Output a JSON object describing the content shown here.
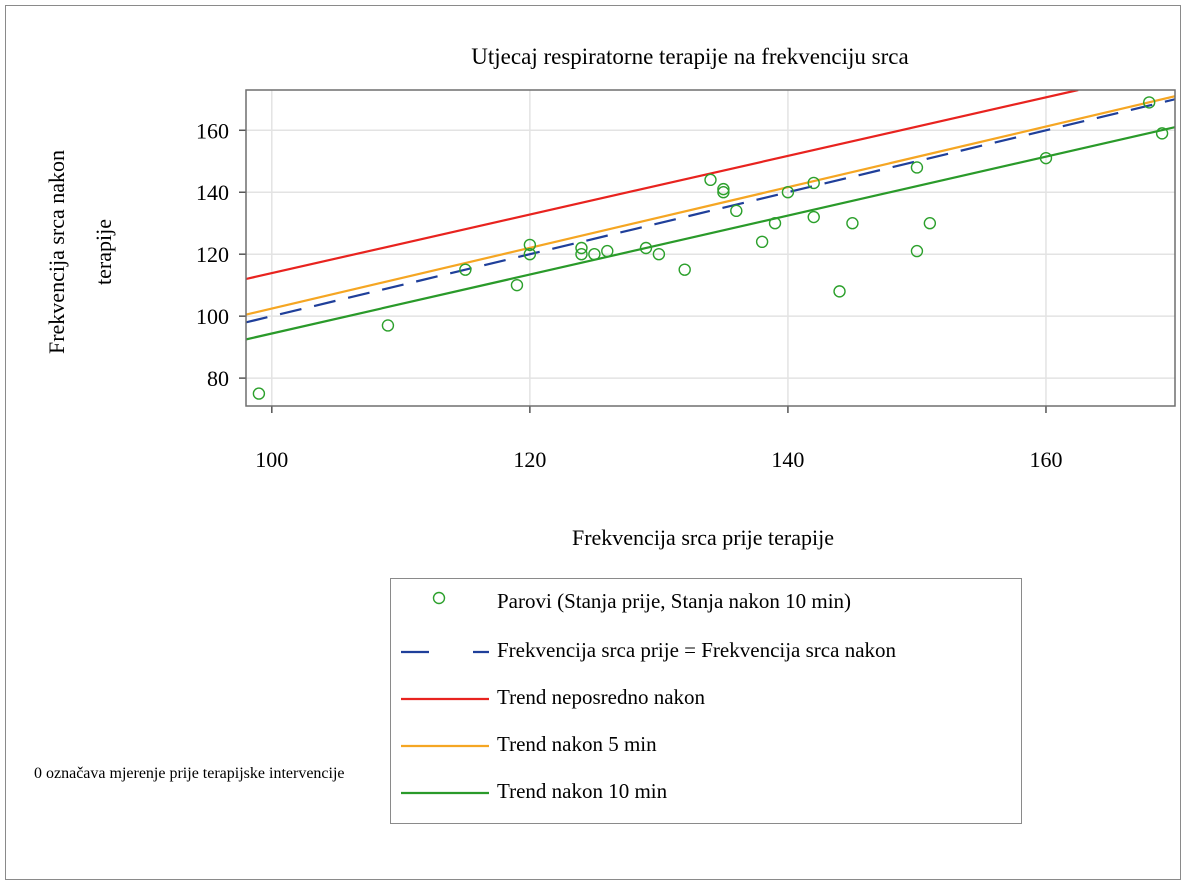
{
  "chart_data": {
    "type": "scatter",
    "title": "Utjecaj respiratorne terapije na frekvenciju srca",
    "xlabel": "Frekvencija srca prije terapije",
    "ylabel": [
      "Frekvencija srca nakon",
      "terapije"
    ],
    "xlim": [
      98,
      170
    ],
    "ylim": [
      71,
      173
    ],
    "xticks": [
      100,
      120,
      140,
      160
    ],
    "yticks": [
      80,
      100,
      120,
      140,
      160
    ],
    "grid": true,
    "legend_position": "bottom",
    "series": [
      {
        "name": "Parovi (Stanja prije,  Stanja nakon 10 min)",
        "kind": "scatter",
        "marker": "open-circle",
        "color": "#2ca02c",
        "points": [
          [
            99,
            75
          ],
          [
            109,
            97
          ],
          [
            115,
            115
          ],
          [
            119,
            110
          ],
          [
            120,
            123
          ],
          [
            120,
            120
          ],
          [
            124,
            122
          ],
          [
            124,
            120
          ],
          [
            125,
            120
          ],
          [
            126,
            121
          ],
          [
            129,
            122
          ],
          [
            130,
            120
          ],
          [
            132,
            115
          ],
          [
            134,
            144
          ],
          [
            135,
            141
          ],
          [
            135,
            140
          ],
          [
            136,
            134
          ],
          [
            138,
            124
          ],
          [
            139,
            130
          ],
          [
            140,
            140
          ],
          [
            142,
            143
          ],
          [
            142,
            132
          ],
          [
            144,
            108
          ],
          [
            145,
            130
          ],
          [
            150,
            148
          ],
          [
            150,
            121
          ],
          [
            151,
            130
          ],
          [
            160,
            151
          ],
          [
            168,
            169
          ],
          [
            169,
            159
          ]
        ]
      },
      {
        "name": "Frekvencija srca prije = Frekvencija srca nakon",
        "kind": "line",
        "dash": "dashed",
        "color": "#1f3f9a",
        "points": [
          [
            98,
            98
          ],
          [
            170,
            170
          ]
        ]
      },
      {
        "name": "Trend neposredno nakon",
        "kind": "line",
        "color": "#e8231f",
        "points": [
          [
            98,
            112
          ],
          [
            162.5,
            173
          ]
        ]
      },
      {
        "name": "Trend nakon 5 min",
        "kind": "line",
        "color": "#f5a623",
        "points": [
          [
            98,
            100.5
          ],
          [
            170,
            171
          ]
        ]
      },
      {
        "name": "Trend nakon 10 min",
        "kind": "line",
        "color": "#2a9a2a",
        "points": [
          [
            98,
            92.5
          ],
          [
            170,
            161
          ]
        ]
      }
    ]
  },
  "footnote": "0 označava mjerenje prije terapijske intervencije"
}
